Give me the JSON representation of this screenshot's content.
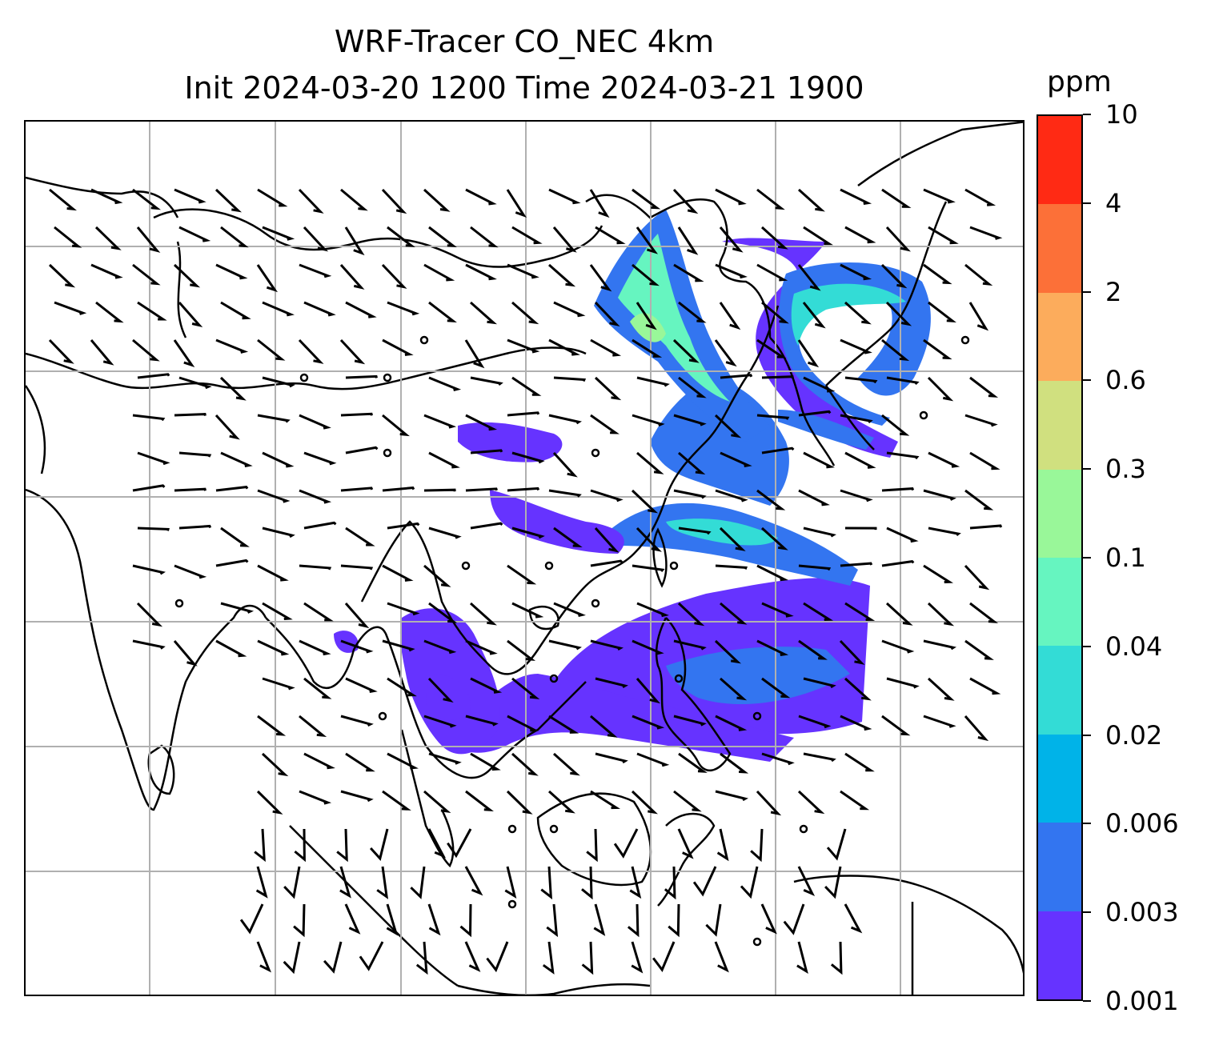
{
  "title_line1": "WRF-Tracer CO_NEC 4km",
  "title_line2": "Init 2024-03-20 1200 Time 2024-03-21 1900",
  "colorbar": {
    "unit": "ppm",
    "levels": [
      "0.001",
      "0.003",
      "0.006",
      "0.02",
      "0.04",
      "0.1",
      "0.3",
      "0.6",
      "2",
      "4",
      "10"
    ],
    "colors": [
      "#6633ff",
      "#3375f0",
      "#00b3e8",
      "#33dcd6",
      "#66f5c0",
      "#99f799",
      "#d0e07f",
      "#fcac5c",
      "#fc7038",
      "#ff2a14"
    ]
  },
  "map": {
    "field": "CO_NEC tracer concentration",
    "overlay": "wind barbs",
    "gridlines": true,
    "plume_colors": {
      "low": "#6633ff",
      "lowmid": "#3375f0",
      "mid": "#33dcd6",
      "high": "#66f5c0",
      "peak": "#99f799"
    }
  }
}
